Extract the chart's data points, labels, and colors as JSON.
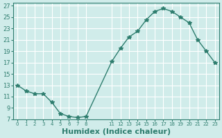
{
  "x": [
    0,
    1,
    2,
    3,
    4,
    5,
    6,
    7,
    8,
    11,
    12,
    13,
    14,
    15,
    16,
    17,
    18,
    19,
    20,
    21,
    22,
    23
  ],
  "y": [
    13,
    12,
    11.5,
    11.5,
    10,
    8,
    7.5,
    7.3,
    7.5,
    17.2,
    19.5,
    21.5,
    22.5,
    24.5,
    26,
    26.5,
    26,
    25,
    24,
    21,
    19,
    17
  ],
  "line_color": "#2e7d6e",
  "marker": "*",
  "marker_color": "#2e7d6e",
  "bg_color": "#d0ecea",
  "grid_color": "#ffffff",
  "xlabel": "Humidex (Indice chaleur)",
  "xlabel_fontsize": 8,
  "ylabel_ticks": [
    7,
    9,
    11,
    13,
    15,
    17,
    19,
    21,
    23,
    25,
    27
  ],
  "xtick_positions": [
    0,
    1,
    2,
    3,
    4,
    5,
    6,
    7,
    8,
    11,
    12,
    13,
    14,
    15,
    16,
    17,
    18,
    19,
    20,
    21,
    22,
    23
  ],
  "xtick_labels": [
    "0",
    "1",
    "2",
    "3",
    "4",
    "5",
    "6",
    "7",
    "8",
    "11",
    "12",
    "13",
    "14",
    "15",
    "16",
    "17",
    "18",
    "19",
    "20",
    "21",
    "22",
    "23"
  ],
  "xlim": [
    -0.5,
    23.5
  ],
  "ylim": [
    7,
    27.5
  ]
}
